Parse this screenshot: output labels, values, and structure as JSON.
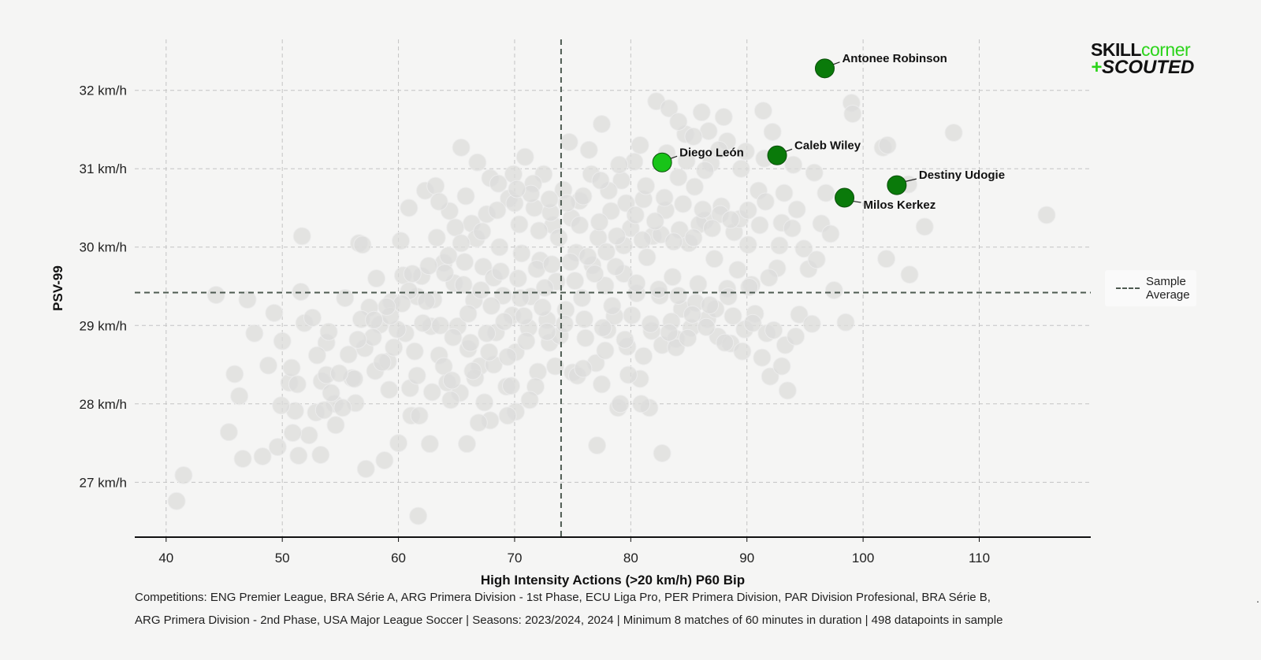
{
  "chart_data": {
    "type": "scatter",
    "xlabel": "High Intensity Actions (>20 km/h) P60 Bip",
    "ylabel": "PSV-99",
    "xlim": [
      37.3,
      119.6
    ],
    "ylim": [
      26.3,
      32.65
    ],
    "xticks": [
      40,
      50,
      60,
      70,
      80,
      90,
      100,
      110
    ],
    "yticks": [
      27,
      28,
      29,
      30,
      31,
      32
    ],
    "ytick_suffix": " km/h",
    "grid": true,
    "sample_average": {
      "x": 74.0,
      "y": 29.42
    },
    "legend": {
      "label": "Sample Average",
      "position": "right"
    },
    "highlighted": [
      {
        "name": "Antonee Robinson",
        "x": 96.7,
        "y": 32.28,
        "color": "#0a7a0a"
      },
      {
        "name": "Diego León",
        "x": 82.7,
        "y": 31.08,
        "color": "#18c418"
      },
      {
        "name": "Caleb Wiley",
        "x": 92.6,
        "y": 31.17,
        "color": "#0a7a0a"
      },
      {
        "name": "Destiny Udogie",
        "x": 102.9,
        "y": 30.79,
        "color": "#0a7a0a"
      },
      {
        "name": "Milos Kerkez",
        "x": 98.4,
        "y": 30.63,
        "color": "#0a7a0a"
      }
    ],
    "sample_points": [
      [
        40.9,
        26.76
      ],
      [
        41.5,
        27.09
      ],
      [
        44.3,
        29.39
      ],
      [
        45.4,
        27.64
      ],
      [
        45.9,
        28.38
      ],
      [
        46.3,
        28.1
      ],
      [
        46.6,
        27.3
      ],
      [
        48.3,
        27.33
      ],
      [
        49.3,
        29.16
      ],
      [
        49.6,
        27.45
      ],
      [
        50,
        28.8
      ],
      [
        50.6,
        28.27
      ],
      [
        50.8,
        28.46
      ],
      [
        51.1,
        27.91
      ],
      [
        51.3,
        28.25
      ],
      [
        51.4,
        27.34
      ],
      [
        51.6,
        29.43
      ],
      [
        51.7,
        30.14
      ],
      [
        51.9,
        29.03
      ],
      [
        52.9,
        27.89
      ],
      [
        53.3,
        27.35
      ],
      [
        53.4,
        28.29
      ],
      [
        53.8,
        28.37
      ],
      [
        53.8,
        28.78
      ],
      [
        54.0,
        28.92
      ],
      [
        54.5,
        28.0
      ],
      [
        54.6,
        27.73
      ],
      [
        56.0,
        28.33
      ],
      [
        56.2,
        28.32
      ],
      [
        56.3,
        28.01
      ],
      [
        56.6,
        30.05
      ],
      [
        56.9,
        30.03
      ],
      [
        57.1,
        28.71
      ],
      [
        57.5,
        29.23
      ],
      [
        58.0,
        28.42
      ],
      [
        58.4,
        29.01
      ],
      [
        58.8,
        27.28
      ],
      [
        59.1,
        28.54
      ],
      [
        59.4,
        29.3
      ],
      [
        59.6,
        28.72
      ],
      [
        60.2,
        30.08
      ],
      [
        60.4,
        29.64
      ],
      [
        60.6,
        28.9
      ],
      [
        61.0,
        28.2
      ],
      [
        61.1,
        27.85
      ],
      [
        61.4,
        28.67
      ],
      [
        61.6,
        29.37
      ],
      [
        61.7,
        26.57
      ],
      [
        62.0,
        29.63
      ],
      [
        62.3,
        30.72
      ],
      [
        62.8,
        28.99
      ],
      [
        63.0,
        29.33
      ],
      [
        63.3,
        30.12
      ],
      [
        63.5,
        28.62
      ],
      [
        63.9,
        29.8
      ],
      [
        64.2,
        28.27
      ],
      [
        64.4,
        30.46
      ],
      [
        64.8,
        29.54
      ],
      [
        65.1,
        28.99
      ],
      [
        65.4,
        31.27
      ],
      [
        65.7,
        29.81
      ],
      [
        66.0,
        28.7
      ],
      [
        66.3,
        30.3
      ],
      [
        66.5,
        29.32
      ],
      [
        66.8,
        31.08
      ],
      [
        67.0,
        28.48
      ],
      [
        67.3,
        29.75
      ],
      [
        67.6,
        30.42
      ],
      [
        67.9,
        27.79
      ],
      [
        68.2,
        29.61
      ],
      [
        68.4,
        28.91
      ],
      [
        68.7,
        30.0
      ],
      [
        69.0,
        29.38
      ],
      [
        69.3,
        28.22
      ],
      [
        69.5,
        30.62
      ],
      [
        69.8,
        29.13
      ],
      [
        70.1,
        28.66
      ],
      [
        70.4,
        30.29
      ],
      [
        70.6,
        29.92
      ],
      [
        70.9,
        31.15
      ],
      [
        71.2,
        28.97
      ],
      [
        71.4,
        29.37
      ],
      [
        71.7,
        30.5
      ],
      [
        72.0,
        28.41
      ],
      [
        72.2,
        29.83
      ],
      [
        72.5,
        30.93
      ],
      [
        72.8,
        29.07
      ],
      [
        73.0,
        28.78
      ],
      [
        73.3,
        30.28
      ],
      [
        73.6,
        29.56
      ],
      [
        73.9,
        28.87
      ],
      [
        74.2,
        30.73
      ],
      [
        74.4,
        29.2
      ],
      [
        74.7,
        31.34
      ],
      [
        75.0,
        28.4
      ],
      [
        75.3,
        29.93
      ],
      [
        75.6,
        30.59
      ],
      [
        75.8,
        29.35
      ],
      [
        76.1,
        28.84
      ],
      [
        76.4,
        31.24
      ],
      [
        76.7,
        29.77
      ],
      [
        77.0,
        28.52
      ],
      [
        77.2,
        30.12
      ],
      [
        77.5,
        31.57
      ],
      [
        77.8,
        29.51
      ],
      [
        78.0,
        28.94
      ],
      [
        78.3,
        30.46
      ],
      [
        78.6,
        29.12
      ],
      [
        78.9,
        27.95
      ],
      [
        79.2,
        30.85
      ],
      [
        79.4,
        29.66
      ],
      [
        79.7,
        28.73
      ],
      [
        80.0,
        30.24
      ],
      [
        80.3,
        31.09
      ],
      [
        80.5,
        29.41
      ],
      [
        80.8,
        28.32
      ],
      [
        81.1,
        30.61
      ],
      [
        81.4,
        29.87
      ],
      [
        81.6,
        27.95
      ],
      [
        81.9,
        30.14
      ],
      [
        82.2,
        31.86
      ],
      [
        82.5,
        29.38
      ],
      [
        82.7,
        28.75
      ],
      [
        83.0,
        30.47
      ],
      [
        83.3,
        31.77
      ],
      [
        83.6,
        29.62
      ],
      [
        83.9,
        28.83
      ],
      [
        84.1,
        30.89
      ],
      [
        84.4,
        29.21
      ],
      [
        84.7,
        31.44
      ],
      [
        85.0,
        30.05
      ],
      [
        85.2,
        28.97
      ],
      [
        85.5,
        30.77
      ],
      [
        85.8,
        29.53
      ],
      [
        86.1,
        31.72
      ],
      [
        86.4,
        30.34
      ],
      [
        86.6,
        29.08
      ],
      [
        86.9,
        31.07
      ],
      [
        87.2,
        29.85
      ],
      [
        87.5,
        28.86
      ],
      [
        87.8,
        30.52
      ],
      [
        88.0,
        31.66
      ],
      [
        88.3,
        29.47
      ],
      [
        88.6,
        28.77
      ],
      [
        88.9,
        30.19
      ],
      [
        89.2,
        29.71
      ],
      [
        89.5,
        31.0
      ],
      [
        89.8,
        28.95
      ],
      [
        90.1,
        30.03
      ],
      [
        90.4,
        29.52
      ],
      [
        90.7,
        29.15
      ],
      [
        91.0,
        30.72
      ],
      [
        91.4,
        31.74
      ],
      [
        91.7,
        28.9
      ],
      [
        92.0,
        28.35
      ],
      [
        92.2,
        31.47
      ],
      [
        92.6,
        29.73
      ],
      [
        93.0,
        30.31
      ],
      [
        93.3,
        28.75
      ],
      [
        93.5,
        28.17
      ],
      [
        93.9,
        30.24
      ],
      [
        94.3,
        30.48
      ],
      [
        94.5,
        29.14
      ],
      [
        94.9,
        29.98
      ],
      [
        95.3,
        29.72
      ],
      [
        95.6,
        29.02
      ],
      [
        96.0,
        29.84
      ],
      [
        96.4,
        30.3
      ],
      [
        96.8,
        30.69
      ],
      [
        97.2,
        30.17
      ],
      [
        97.5,
        29.45
      ],
      [
        98.5,
        29.04
      ],
      [
        99.0,
        31.84
      ],
      [
        99.1,
        31.7
      ],
      [
        101.7,
        31.27
      ],
      [
        102.0,
        29.85
      ],
      [
        102.1,
        31.3
      ],
      [
        103.9,
        30.8
      ],
      [
        104.0,
        29.65
      ],
      [
        105.3,
        30.26
      ],
      [
        107.8,
        31.46
      ],
      [
        115.8,
        30.41
      ],
      [
        77.1,
        27.47
      ],
      [
        82.7,
        27.37
      ],
      [
        79.1,
        28.0
      ],
      [
        80.9,
        28.0
      ],
      [
        65.9,
        27.49
      ],
      [
        62.7,
        27.49
      ],
      [
        60.0,
        27.5
      ],
      [
        57.2,
        27.17
      ],
      [
        66.6,
        28.33
      ],
      [
        68.2,
        28.5
      ],
      [
        70.1,
        27.9
      ],
      [
        71.8,
        28.22
      ],
      [
        73.5,
        28.48
      ],
      [
        75.4,
        28.36
      ],
      [
        77.5,
        28.25
      ],
      [
        79.8,
        28.37
      ],
      [
        81.1,
        28.61
      ],
      [
        83.9,
        28.72
      ],
      [
        58.6,
        28.53
      ],
      [
        59.9,
        28.95
      ],
      [
        62.1,
        29.03
      ],
      [
        63.6,
        29.0
      ],
      [
        64.7,
        28.85
      ],
      [
        66.2,
        28.78
      ],
      [
        67.6,
        28.9
      ],
      [
        69.1,
        29.05
      ],
      [
        70.8,
        29.12
      ],
      [
        72.4,
        29.23
      ],
      [
        55.4,
        29.35
      ],
      [
        56.8,
        29.08
      ],
      [
        58.1,
        29.6
      ],
      [
        60.9,
        29.44
      ],
      [
        62.4,
        29.31
      ],
      [
        64.0,
        29.67
      ],
      [
        65.6,
        29.52
      ],
      [
        67.1,
        29.45
      ],
      [
        68.8,
        29.69
      ],
      [
        70.3,
        29.6
      ],
      [
        71.9,
        29.72
      ],
      [
        73.2,
        29.78
      ],
      [
        74.8,
        29.81
      ],
      [
        76.3,
        29.88
      ],
      [
        77.9,
        29.94
      ],
      [
        79.4,
        30.02
      ],
      [
        81.0,
        30.09
      ],
      [
        82.6,
        30.16
      ],
      [
        84.2,
        30.22
      ],
      [
        85.9,
        30.29
      ],
      [
        60.9,
        30.5
      ],
      [
        63.2,
        30.78
      ],
      [
        64.9,
        30.25
      ],
      [
        66.7,
        30.11
      ],
      [
        68.5,
        30.47
      ],
      [
        70.0,
        30.56
      ],
      [
        71.6,
        30.81
      ],
      [
        73.1,
        30.44
      ],
      [
        74.9,
        30.37
      ],
      [
        76.6,
        30.93
      ],
      [
        78.1,
        30.72
      ],
      [
        79.6,
        30.56
      ],
      [
        81.3,
        30.78
      ],
      [
        82.9,
        30.63
      ],
      [
        84.5,
        30.55
      ],
      [
        86.2,
        30.48
      ],
      [
        87.7,
        30.42
      ],
      [
        89.4,
        30.36
      ],
      [
        91.1,
        30.28
      ],
      [
        92.8,
        30.02
      ],
      [
        66.0,
        29.15
      ],
      [
        68.0,
        29.25
      ],
      [
        70.5,
        29.35
      ],
      [
        72.6,
        29.48
      ],
      [
        75.2,
        29.57
      ],
      [
        76.9,
        29.66
      ],
      [
        78.7,
        29.75
      ],
      [
        80.5,
        29.54
      ],
      [
        82.4,
        29.46
      ],
      [
        84.1,
        29.38
      ],
      [
        85.6,
        29.29
      ],
      [
        87.3,
        29.21
      ],
      [
        88.8,
        29.12
      ],
      [
        90.5,
        29.03
      ],
      [
        92.3,
        28.94
      ],
      [
        94.2,
        28.86
      ],
      [
        75.9,
        28.45
      ],
      [
        77.8,
        28.68
      ],
      [
        79.5,
        28.82
      ],
      [
        81.8,
        28.93
      ],
      [
        83.5,
        29.05
      ],
      [
        85.3,
        29.14
      ],
      [
        86.8,
        29.26
      ],
      [
        88.4,
        29.37
      ],
      [
        90.2,
        29.49
      ],
      [
        91.9,
        29.61
      ],
      [
        59.2,
        28.18
      ],
      [
        61.6,
        28.36
      ],
      [
        63.9,
        28.48
      ],
      [
        65.3,
        28.14
      ],
      [
        67.4,
        28.02
      ],
      [
        69.7,
        28.23
      ],
      [
        71.3,
        28.05
      ],
      [
        61.8,
        27.85
      ],
      [
        64.5,
        28.05
      ],
      [
        66.9,
        27.76
      ],
      [
        69.4,
        27.85
      ],
      [
        55.2,
        27.95
      ],
      [
        53.0,
        28.62
      ],
      [
        52.6,
        29.1
      ],
      [
        57.8,
        28.85
      ],
      [
        59.3,
        29.12
      ],
      [
        63.5,
        30.58
      ],
      [
        65.8,
        30.65
      ],
      [
        67.9,
        30.88
      ],
      [
        69.9,
        30.93
      ],
      [
        72.1,
        30.21
      ],
      [
        73.8,
        30.12
      ],
      [
        75.6,
        30.28
      ],
      [
        77.3,
        30.32
      ],
      [
        78.8,
        30.14
      ],
      [
        80.4,
        30.41
      ],
      [
        82.1,
        30.33
      ],
      [
        83.7,
        30.07
      ],
      [
        85.4,
        30.12
      ],
      [
        87.0,
        30.24
      ],
      [
        88.6,
        30.35
      ],
      [
        90.1,
        30.47
      ],
      [
        91.6,
        30.58
      ],
      [
        93.2,
        30.69
      ],
      [
        78.4,
        29.25
      ],
      [
        80.1,
        29.13
      ],
      [
        81.7,
        29.02
      ],
      [
        83.3,
        28.91
      ],
      [
        84.9,
        28.84
      ],
      [
        86.5,
        28.98
      ],
      [
        88.1,
        28.78
      ],
      [
        89.6,
        28.67
      ],
      [
        91.3,
        28.59
      ],
      [
        93.0,
        28.48
      ],
      [
        76.0,
        29.08
      ],
      [
        77.6,
        28.97
      ],
      [
        74.3,
        29.02
      ],
      [
        72.8,
        28.92
      ],
      [
        71.0,
        28.8
      ],
      [
        69.4,
        28.6
      ],
      [
        67.8,
        28.66
      ],
      [
        66.4,
        28.42
      ],
      [
        64.6,
        28.3
      ],
      [
        62.9,
        28.15
      ],
      [
        83.1,
        31.2
      ],
      [
        84.8,
        31.1
      ],
      [
        86.4,
        30.98
      ],
      [
        88.3,
        31.35
      ],
      [
        89.9,
        31.22
      ],
      [
        91.5,
        31.13
      ],
      [
        94.0,
        31.05
      ],
      [
        95.8,
        30.95
      ],
      [
        84.1,
        31.6
      ],
      [
        86.7,
        31.48
      ],
      [
        87.6,
        31.24
      ],
      [
        85.4,
        31.41
      ],
      [
        80.8,
        31.3
      ],
      [
        79.0,
        31.05
      ],
      [
        77.4,
        30.85
      ],
      [
        75.9,
        30.65
      ],
      [
        74.5,
        30.56
      ],
      [
        73.0,
        30.61
      ],
      [
        71.4,
        30.68
      ],
      [
        70.2,
        30.74
      ],
      [
        68.6,
        30.81
      ],
      [
        67.2,
        30.2
      ],
      [
        65.4,
        30.05
      ],
      [
        64.3,
        29.89
      ],
      [
        62.6,
        29.76
      ],
      [
        61.2,
        29.66
      ],
      [
        60.3,
        29.28
      ],
      [
        59.0,
        29.24
      ],
      [
        57.9,
        29.07
      ],
      [
        56.5,
        28.82
      ],
      [
        55.7,
        28.63
      ],
      [
        54.9,
        28.39
      ],
      [
        54.2,
        28.14
      ],
      [
        53.6,
        27.92
      ],
      [
        52.3,
        27.6
      ],
      [
        50.9,
        27.63
      ],
      [
        49.9,
        27.98
      ],
      [
        48.8,
        28.49
      ],
      [
        47.6,
        28.9
      ],
      [
        47.0,
        29.33
      ]
    ]
  },
  "captions": {
    "line1": "Competitions: ENG Premier League, BRA Série A, ARG Primera Division - 1st Phase, ECU Liga Pro, PER Primera Division, PAR Division Profesional, BRA Série B,",
    "line2": "ARG Primera Division - 2nd Phase, USA Major League Soccer | Seasons: 2023/2024, 2024 | Minimum 8 matches of 60 minutes in duration | 498 datapoints in sample"
  },
  "logo": {
    "part1": "SKILL",
    "part2": "corner",
    "part3": "+",
    "part4": "SCOUTED"
  },
  "legend_text": "Sample Average",
  "stray_mark": "."
}
